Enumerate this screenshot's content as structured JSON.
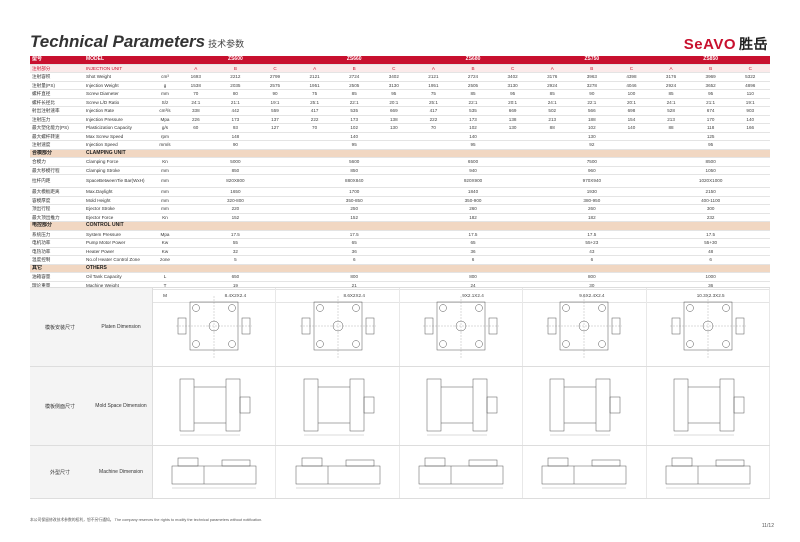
{
  "header": {
    "title": "Technical Parameters",
    "title_cn": "技术参数",
    "brand": "SeAVO",
    "brand_cn": "胜岳"
  },
  "table": {
    "model_label_cn": "型号",
    "model_label": "MODEL",
    "models": [
      "ZS600",
      "ZS660",
      "ZS680",
      "ZS750",
      "ZS850"
    ],
    "sub_cn": "注射部分",
    "sub_en": "INJECTION UNIT",
    "sub_cols": [
      "A",
      "B",
      "C",
      "A",
      "B",
      "C",
      "A",
      "B",
      "C",
      "A",
      "B",
      "C",
      "A",
      "B",
      "C"
    ],
    "sections": [
      {
        "cn": "",
        "en": "",
        "rows": [
          {
            "cn": "注射容积",
            "en": "Shot Weight",
            "unit": "cm³",
            "values": [
              "1693",
              "2212",
              "2799",
              "2121",
              "2724",
              "3402",
              "2121",
              "2724",
              "3402",
              "3176",
              "3963",
              "4398",
              "3176",
              "3969",
              "5322"
            ]
          },
          {
            "cn": "注射量(PS)",
            "en": "Injection Weight",
            "unit": "g",
            "values": [
              "1538",
              "2035",
              "2575",
              "1951",
              "2505",
              "3130",
              "1951",
              "2505",
              "3130",
              "2924",
              "3278",
              "4046",
              "2924",
              "3652",
              "4896"
            ]
          },
          {
            "cn": "螺杆直径",
            "en": "Screw Diameter",
            "unit": "mm",
            "values": [
              "70",
              "80",
              "90",
              "75",
              "85",
              "95",
              "75",
              "85",
              "95",
              "85",
              "90",
              "100",
              "85",
              "95",
              "110"
            ]
          },
          {
            "cn": "螺杆长径比",
            "en": "Screw L/D Ratio",
            "unit": "S/z",
            "values": [
              "24:1",
              "21:1",
              "19:1",
              "25:1",
              "22:1",
              "20:1",
              "25:1",
              "22:1",
              "20:1",
              "24:1",
              "22:1",
              "20:1",
              "24:1",
              "21:1",
              "19:1"
            ]
          },
          {
            "cn": "射出注射速率",
            "en": "Injection Rate",
            "unit": "cm³/s",
            "values": [
              "338",
              "442",
              "559",
              "417",
              "535",
              "669",
              "417",
              "535",
              "669",
              "502",
              "566",
              "698",
              "528",
              "674",
              "903"
            ]
          },
          {
            "cn": "注射压力",
            "en": "Injection Pressure",
            "unit": "Mpa",
            "values": [
              "226",
              "173",
              "137",
              "222",
              "173",
              "138",
              "222",
              "173",
              "138",
              "213",
              "188",
              "154",
              "213",
              "170",
              "140"
            ]
          },
          {
            "cn": "最大塑化能力(PS)",
            "en": "Plasticization Capacity",
            "unit": "g/s",
            "values": [
              "60",
              "93",
              "127",
              "70",
              "102",
              "130",
              "70",
              "102",
              "130",
              "88",
              "102",
              "140",
              "88",
              "118",
              "166"
            ]
          },
          {
            "cn": "最大螺杆转速",
            "en": "Max Screw Speed",
            "unit": "rpm",
            "span": [
              "148",
              "140",
              "140",
              "130",
              "125"
            ]
          },
          {
            "cn": "注射速度",
            "en": "Injection Speed",
            "unit": "mm/s",
            "span": [
              "90",
              "95",
              "95",
              "92",
              "95"
            ]
          }
        ]
      },
      {
        "cn": "合模部分",
        "en": "CLAMPING UNIT",
        "rows": [
          {
            "cn": "合模力",
            "en": "Clamping Force",
            "unit": "Kn",
            "span": [
              "5000",
              "5600",
              "6500",
              "7500",
              "8500"
            ]
          },
          {
            "cn": "最大移模行程",
            "en": "Clamping Stroke",
            "unit": "mm",
            "span": [
              "850",
              "850",
              "940",
              "960",
              "1050"
            ]
          },
          {
            "cn": "拉杆内距",
            "en": "SpaceBetweenTie Bar(WxH)",
            "unit": "mm",
            "span": [
              "820X800",
              "880X840",
              "920X900",
              "970X940",
              "1020X1000"
            ],
            "tall": true
          },
          {
            "cn": "最大模板距离",
            "en": "Max.Daylight",
            "unit": "mm",
            "span": [
              "1650",
              "1700",
              "1840",
              "1930",
              "2150"
            ]
          },
          {
            "cn": "容模厚度",
            "en": "Mold Height",
            "unit": "mm",
            "span": [
              "320-800",
              "350-850",
              "350-900",
              "380-950",
              "400-1100"
            ]
          },
          {
            "cn": "顶出行程",
            "en": "Ejector Stroke",
            "unit": "mm",
            "span": [
              "220",
              "250",
              "260",
              "260",
              "300"
            ]
          },
          {
            "cn": "最大顶出推力",
            "en": "Ejector Force",
            "unit": "Kn",
            "span": [
              "152",
              "152",
              "182",
              "182",
              "232"
            ]
          }
        ]
      },
      {
        "cn": "电控部分",
        "en": "CONTROL UNIT",
        "rows": [
          {
            "cn": "系统压力",
            "en": "System Pressure",
            "unit": "Mpa",
            "span": [
              "17.5",
              "17.5",
              "17.5",
              "17.5",
              "17.5"
            ]
          },
          {
            "cn": "电机功率",
            "en": "Pump Motor Power",
            "unit": "Kw",
            "span": [
              "55",
              "65",
              "65",
              "55+23",
              "55+30"
            ]
          },
          {
            "cn": "电热功率",
            "en": "Heater Power",
            "unit": "Kw",
            "span": [
              "32",
              "36",
              "36",
              "43",
              "48"
            ]
          },
          {
            "cn": "温度控制",
            "en": "No.of Heater Control Zone",
            "unit": "zone",
            "span": [
              "5",
              "6",
              "6",
              "6",
              "6"
            ]
          }
        ]
      },
      {
        "cn": "其它",
        "en": "OTHERS",
        "rows": [
          {
            "cn": "油箱容量",
            "en": "Oil Tank Capacity",
            "unit": "L",
            "span": [
              "650",
              "800",
              "800",
              "800",
              "1000"
            ]
          },
          {
            "cn": "理论重量",
            "en": "Machine Weight",
            "unit": "T",
            "span": [
              "19",
              "21",
              "24",
              "30",
              "36"
            ]
          },
          {
            "cn": "外型尺寸",
            "en": "Machine Dimension(LxWxH)",
            "unit": "M",
            "span": [
              "8.4X2X2.4",
              "8.6X2X2.4",
              "9X2.1X2.4",
              "9.6X2.4X2.4",
              "10.3X2.3X2.5"
            ],
            "tall": true
          }
        ]
      }
    ]
  },
  "drawings": [
    {
      "cn": "模板安装尺寸",
      "en": "Platen Dimension",
      "kind": "platen"
    },
    {
      "cn": "模板侧面尺寸",
      "en": "Mold Space Dimension",
      "kind": "mold"
    },
    {
      "cn": "外型尺寸",
      "en": "Machine Dimension",
      "kind": "machine"
    }
  ],
  "footer": {
    "note": "本公司保留修改技术参数的权利，恕不另行通知。 The company reserves the rights to modify the technical parameters without notification.",
    "page": "11/12"
  },
  "colors": {
    "brand_red": "#c8102e",
    "section_bg": "#f1d7c2",
    "sub_bg": "#fbeaea"
  }
}
